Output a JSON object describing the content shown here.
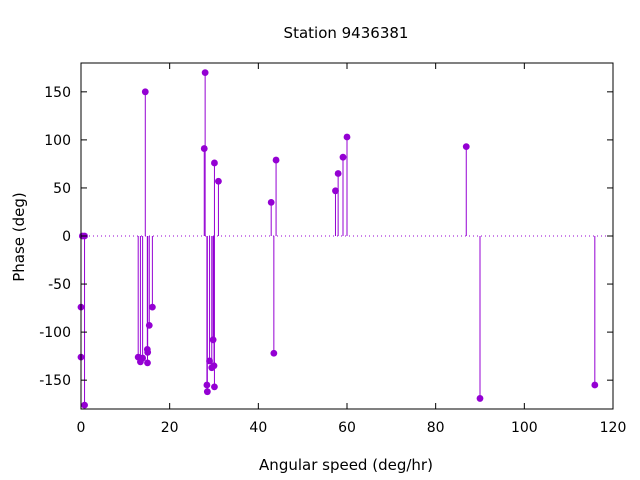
{
  "chart_data": {
    "type": "scatter",
    "style": "impulses-with-points",
    "title": "Station 9436381",
    "xlabel": "Angular speed (deg/hr)",
    "ylabel": "Phase (deg)",
    "xlim": [
      0,
      120
    ],
    "ylim": [
      -180,
      180
    ],
    "x_ticks": [
      0,
      20,
      40,
      60,
      80,
      100,
      120
    ],
    "y_ticks": [
      -150,
      -100,
      -50,
      0,
      50,
      100,
      150
    ],
    "grid": false,
    "zero_line": "dotted",
    "color": "#9400d3",
    "points": [
      {
        "x": 0.0,
        "y": -74
      },
      {
        "x": 0.0,
        "y": -126
      },
      {
        "x": 0.3,
        "y": 0
      },
      {
        "x": 0.8,
        "y": 0
      },
      {
        "x": 0.8,
        "y": -176
      },
      {
        "x": 12.9,
        "y": -126
      },
      {
        "x": 13.4,
        "y": -131
      },
      {
        "x": 13.9,
        "y": -127
      },
      {
        "x": 14.5,
        "y": 150
      },
      {
        "x": 14.96,
        "y": -118
      },
      {
        "x": 15.0,
        "y": -132
      },
      {
        "x": 15.04,
        "y": -121
      },
      {
        "x": 15.4,
        "y": -93
      },
      {
        "x": 16.1,
        "y": -74
      },
      {
        "x": 27.8,
        "y": 91
      },
      {
        "x": 28.0,
        "y": 170
      },
      {
        "x": 28.4,
        "y": -155
      },
      {
        "x": 28.5,
        "y": -162
      },
      {
        "x": 29.0,
        "y": -130
      },
      {
        "x": 29.5,
        "y": -137
      },
      {
        "x": 29.8,
        "y": -108
      },
      {
        "x": 30.0,
        "y": -135
      },
      {
        "x": 30.1,
        "y": 76
      },
      {
        "x": 30.1,
        "y": -157
      },
      {
        "x": 31.0,
        "y": 57
      },
      {
        "x": 42.9,
        "y": 35
      },
      {
        "x": 43.5,
        "y": -122
      },
      {
        "x": 44.0,
        "y": 79
      },
      {
        "x": 57.4,
        "y": 47
      },
      {
        "x": 58.0,
        "y": 65
      },
      {
        "x": 59.1,
        "y": 82
      },
      {
        "x": 60.0,
        "y": 103
      },
      {
        "x": 86.9,
        "y": 93
      },
      {
        "x": 90.0,
        "y": -169
      },
      {
        "x": 115.9,
        "y": -155
      }
    ]
  }
}
